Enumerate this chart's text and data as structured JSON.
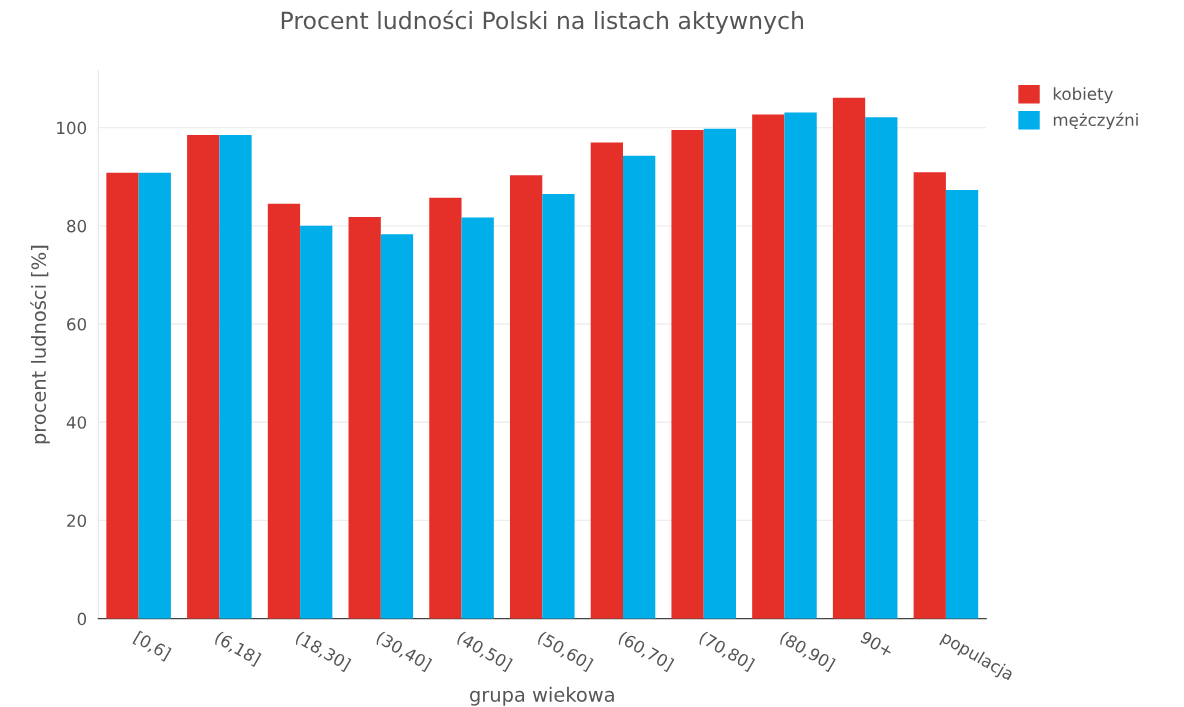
{
  "chart_data": {
    "type": "bar",
    "title": "Procent ludności Polski na listach aktywnych",
    "xlabel": "grupa wiekowa",
    "ylabel": "procent ludności [%]",
    "categories": [
      "[0,6]",
      "(6,18]",
      "(18,30]",
      "(30,40]",
      "(40,50]",
      "(50,60]",
      "(60,70]",
      "(70,80]",
      "(80,90]",
      "90+",
      "populacja"
    ],
    "series": [
      {
        "name": "kobiety",
        "color": "#e5302a",
        "values": [
          90.8,
          98.5,
          84.5,
          81.8,
          85.7,
          90.3,
          97,
          99.5,
          102.7,
          106.1,
          90.9
        ]
      },
      {
        "name": "mężczyźni",
        "color": "#00aeea",
        "values": [
          90.8,
          98.5,
          80.0,
          78.3,
          81.7,
          86.5,
          94.3,
          99.8,
          103.1,
          102.1,
          87.3
        ]
      }
    ],
    "ylim": [
      0,
      111.6
    ],
    "yticks": [
      0,
      20,
      40,
      60,
      80,
      100
    ],
    "grid": "y",
    "legend": "top right"
  }
}
